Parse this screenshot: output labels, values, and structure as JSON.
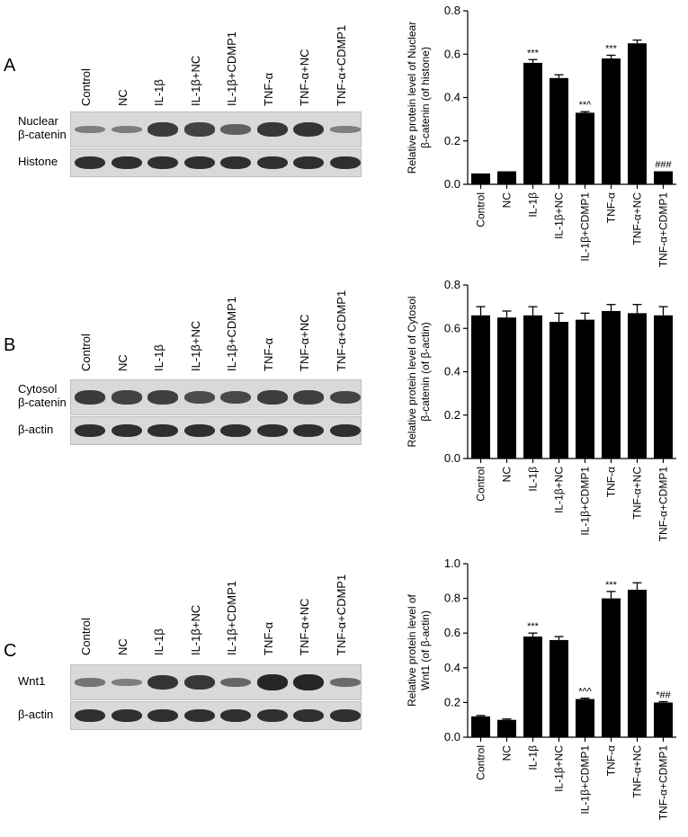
{
  "lane_labels": [
    "Control",
    "NC",
    "IL-1β",
    "IL-1β+NC",
    "IL-1β+CDMP1",
    "TNF-α",
    "TNF-α+NC",
    "TNF-α+CDMP1"
  ],
  "panels": [
    {
      "letter": "A",
      "blots": [
        {
          "label_lines": [
            "Nuclear",
            "β-catenin"
          ],
          "intensities": [
            0.2,
            0.22,
            0.75,
            0.7,
            0.45,
            0.78,
            0.82,
            0.18
          ]
        },
        {
          "label_lines": [
            "Histone"
          ],
          "intensities": [
            0.85,
            0.85,
            0.85,
            0.85,
            0.85,
            0.85,
            0.85,
            0.85
          ]
        }
      ]
    },
    {
      "letter": "B",
      "blots": [
        {
          "label_lines": [
            "Cytosol",
            "β-catenin"
          ],
          "intensities": [
            0.75,
            0.7,
            0.72,
            0.62,
            0.65,
            0.74,
            0.72,
            0.68
          ]
        },
        {
          "label_lines": [
            "β-actin"
          ],
          "intensities": [
            0.85,
            0.85,
            0.85,
            0.85,
            0.85,
            0.85,
            0.85,
            0.85
          ]
        }
      ]
    },
    {
      "letter": "C",
      "blots": [
        {
          "label_lines": [
            "Wnt1"
          ],
          "intensities": [
            0.28,
            0.2,
            0.8,
            0.78,
            0.4,
            0.9,
            0.92,
            0.35
          ]
        },
        {
          "label_lines": [
            "β-actin"
          ],
          "intensities": [
            0.85,
            0.85,
            0.85,
            0.85,
            0.85,
            0.85,
            0.85,
            0.85
          ]
        }
      ]
    }
  ],
  "chart_data": [
    {
      "type": "bar",
      "categories": [
        "Control",
        "NC",
        "IL-1β",
        "IL-1β+NC",
        "IL-1β+CDMP1",
        "TNF-α",
        "TNF-α+NC",
        "TNF-α+CDMP1"
      ],
      "values": [
        0.05,
        0.06,
        0.56,
        0.49,
        0.33,
        0.58,
        0.65,
        0.06
      ],
      "errors": [
        0.0,
        0.0,
        0.015,
        0.015,
        0.005,
        0.015,
        0.015,
        0.0
      ],
      "annotations": [
        "",
        "",
        "***",
        "",
        "**^",
        "***",
        "",
        "###"
      ],
      "ylabel_lines": [
        "Relative protein level of Nuclear",
        "β-catenin (of histone)"
      ],
      "ylim": [
        0,
        0.8
      ],
      "yticks": [
        "0.0",
        "0.2",
        "0.4",
        "0.6",
        "0.8"
      ],
      "bar_color": "#000000"
    },
    {
      "type": "bar",
      "categories": [
        "Control",
        "NC",
        "IL-1β",
        "IL-1β+NC",
        "IL-1β+CDMP1",
        "TNF-α",
        "TNF-α+NC",
        "TNF-α+CDMP1"
      ],
      "values": [
        0.66,
        0.65,
        0.66,
        0.63,
        0.64,
        0.68,
        0.67,
        0.66
      ],
      "errors": [
        0.04,
        0.03,
        0.04,
        0.04,
        0.03,
        0.03,
        0.04,
        0.04
      ],
      "annotations": [
        "",
        "",
        "",
        "",
        "",
        "",
        "",
        ""
      ],
      "ylabel_lines": [
        "Relative protein level of Cytosol",
        "β-catenin (of β-actin)"
      ],
      "ylim": [
        0,
        0.8
      ],
      "yticks": [
        "0.0",
        "0.2",
        "0.4",
        "0.6",
        "0.8"
      ],
      "bar_color": "#000000"
    },
    {
      "type": "bar",
      "categories": [
        "Control",
        "NC",
        "IL-1β",
        "IL-1β+NC",
        "IL-1β+CDMP1",
        "TNF-α",
        "TNF-α+NC",
        "TNF-α+CDMP1"
      ],
      "values": [
        0.12,
        0.1,
        0.58,
        0.56,
        0.22,
        0.8,
        0.85,
        0.2
      ],
      "errors": [
        0.005,
        0.005,
        0.02,
        0.02,
        0.005,
        0.04,
        0.04,
        0.005
      ],
      "annotations": [
        "",
        "",
        "***",
        "",
        "*^^",
        "***",
        "",
        "*##"
      ],
      "ylabel_lines": [
        "Relative protein level of",
        "Wnt1 (of β-actin)"
      ],
      "ylim": [
        0,
        1.0
      ],
      "yticks": [
        "0.0",
        "0.2",
        "0.4",
        "0.6",
        "0.8",
        "1.0"
      ],
      "bar_color": "#000000"
    }
  ]
}
